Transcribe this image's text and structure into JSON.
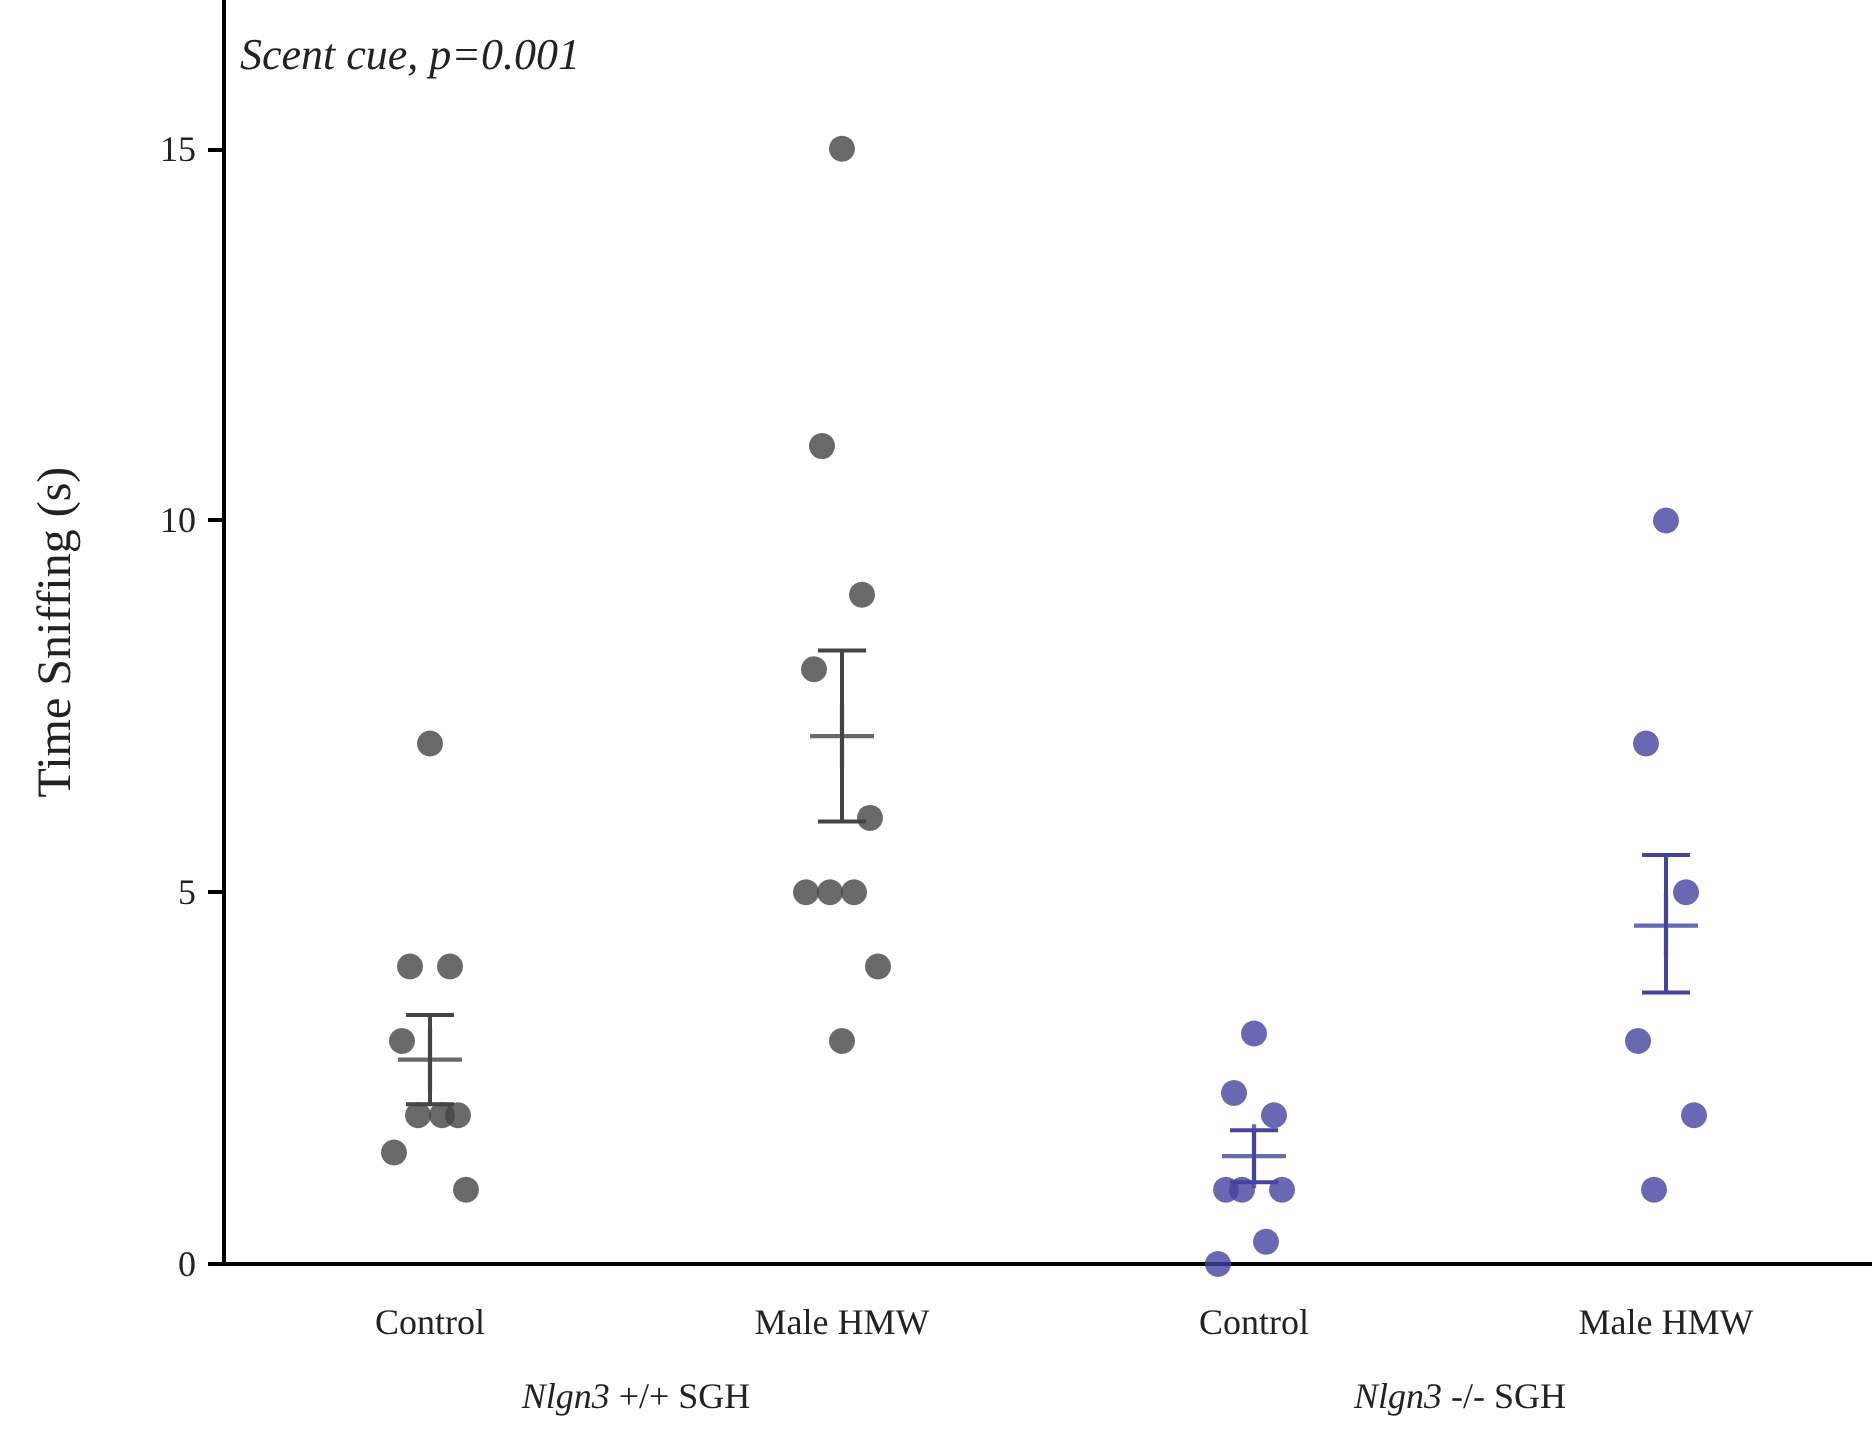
{
  "chart_data": {
    "type": "scatter",
    "ylabel": "Time Sniffing (s)",
    "annotations": [
      "Scent cue, p=0.001",
      "Nlgn3 +/+ SGH",
      "Nlgn3 -/- SGH"
    ],
    "categories": [
      "Control",
      "Male HMW",
      "Control",
      "Male HMW"
    ],
    "ylim": [
      0,
      17
    ],
    "yticks": [
      0,
      5,
      10,
      15
    ],
    "grid": false,
    "marker": "circle",
    "series": [
      {
        "type": "scatter",
        "colors": [
          "#444444",
          "#444444",
          "#4444a0",
          "#4444a0"
        ],
        "values": [
          7,
          15,
          3.1,
          10
        ]
      },
      {
        "type": "scatter",
        "colors": [
          "#444444",
          "#444444",
          "#4444a0",
          "#4444a0"
        ],
        "values": [
          4,
          11,
          2.3,
          7
        ]
      },
      {
        "type": "scatter",
        "colors": [
          "#444444",
          "#444444",
          "#4444a0",
          "#4444a0"
        ],
        "values": [
          4,
          9,
          2,
          5
        ]
      },
      {
        "type": "scatter",
        "colors": [
          "#444444",
          "#444444",
          "#4444a0",
          "#4444a0"
        ],
        "values": [
          3,
          8,
          1,
          3
        ]
      },
      {
        "type": "scatter",
        "colors": [
          "#444444",
          "#444444",
          "#4444a0",
          "#4444a0"
        ],
        "values": [
          2,
          6,
          1,
          2
        ]
      },
      {
        "type": "scatter",
        "colors": [
          "#444444",
          "#444444",
          "#4444a0",
          "#4444a0"
        ],
        "values": [
          2,
          5,
          1,
          1
        ]
      },
      {
        "type": "scatter",
        "colors": [
          "#444444",
          "#444444",
          "#4444a0",
          "#4444a0"
        ],
        "values": [
          2,
          5,
          0.3,
          null
        ]
      },
      {
        "type": "scatter",
        "colors": [
          "#444444",
          "#444444",
          "#4444a0",
          "#4444a0"
        ],
        "values": [
          1.5,
          5,
          0,
          null
        ]
      },
      {
        "type": "scatter",
        "colors": [
          "#444444",
          "#444444",
          "#4444a0",
          "#4444a0"
        ],
        "values": [
          1,
          4,
          null,
          null
        ]
      },
      {
        "type": "scatter",
        "colors": [
          "#444444",
          "#444444",
          "#4444a0",
          "#4444a0"
        ],
        "values": [
          null,
          3,
          null,
          null
        ]
      },
      {
        "marker": "cross",
        "colors": [
          "#444444",
          "#444444",
          "#4444a0",
          "#4444a0"
        ],
        "values": [
          2.75,
          7.1,
          1.45,
          4.55
        ],
        "errors": [
          [
            2.15,
            3.35
          ],
          [
            5.95,
            8.25
          ],
          [
            1.1,
            1.8
          ],
          [
            3.65,
            5.5
          ]
        ]
      }
    ]
  }
}
